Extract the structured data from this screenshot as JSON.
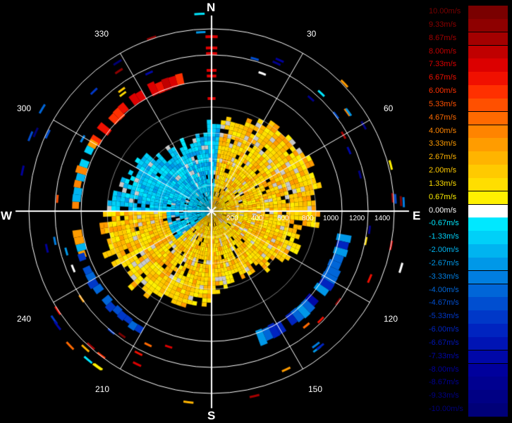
{
  "compass": {
    "north": "N",
    "south": "S",
    "east": "E",
    "west": "W"
  },
  "bearing_labels": [
    "30",
    "60",
    "120",
    "150",
    "210",
    "240",
    "300",
    "330"
  ],
  "range_labels": [
    "200",
    "400",
    "600",
    "800",
    "1000",
    "1200",
    "1400"
  ],
  "legend": {
    "entries": [
      {
        "label": "10.00m/s",
        "color": "#7a0000"
      },
      {
        "label": "9.33m/s",
        "color": "#8e0000"
      },
      {
        "label": "8.67m/s",
        "color": "#a40000"
      },
      {
        "label": "8.00m/s",
        "color": "#c00000"
      },
      {
        "label": "7.33m/s",
        "color": "#dc0000"
      },
      {
        "label": "6.67m/s",
        "color": "#f01000"
      },
      {
        "label": "6.00m/s",
        "color": "#ff3000"
      },
      {
        "label": "5.33m/s",
        "color": "#ff5000"
      },
      {
        "label": "4.67m/s",
        "color": "#ff6a00"
      },
      {
        "label": "4.00m/s",
        "color": "#ff8400"
      },
      {
        "label": "3.33m/s",
        "color": "#ff9c00"
      },
      {
        "label": "2.67m/s",
        "color": "#ffb400"
      },
      {
        "label": "2.00m/s",
        "color": "#ffca00"
      },
      {
        "label": "1.33m/s",
        "color": "#ffde00"
      },
      {
        "label": "0.67m/s",
        "color": "#fff000"
      },
      {
        "label": "0.00m/s",
        "color": "#ffffff"
      },
      {
        "label": "-0.67m/s",
        "color": "#00e8ff"
      },
      {
        "label": "-1.33m/s",
        "color": "#00d0f8"
      },
      {
        "label": "-2.00m/s",
        "color": "#00b4f0"
      },
      {
        "label": "-2.67m/s",
        "color": "#0098e8"
      },
      {
        "label": "-3.33m/s",
        "color": "#007ee0"
      },
      {
        "label": "-4.00m/s",
        "color": "#0066d8"
      },
      {
        "label": "-4.67m/s",
        "color": "#004ed0"
      },
      {
        "label": "-5.33m/s",
        "color": "#0038c8"
      },
      {
        "label": "-6.00m/s",
        "color": "#0024c0"
      },
      {
        "label": "-6.67m/s",
        "color": "#0014b4"
      },
      {
        "label": "-7.33m/s",
        "color": "#0008a8"
      },
      {
        "label": "-8.00m/s",
        "color": "#00009c"
      },
      {
        "label": "-8.67m/s",
        "color": "#000090"
      },
      {
        "label": "-9.33m/s",
        "color": "#000084"
      },
      {
        "label": "-10.00m/s",
        "color": "#000078"
      }
    ]
  }
}
